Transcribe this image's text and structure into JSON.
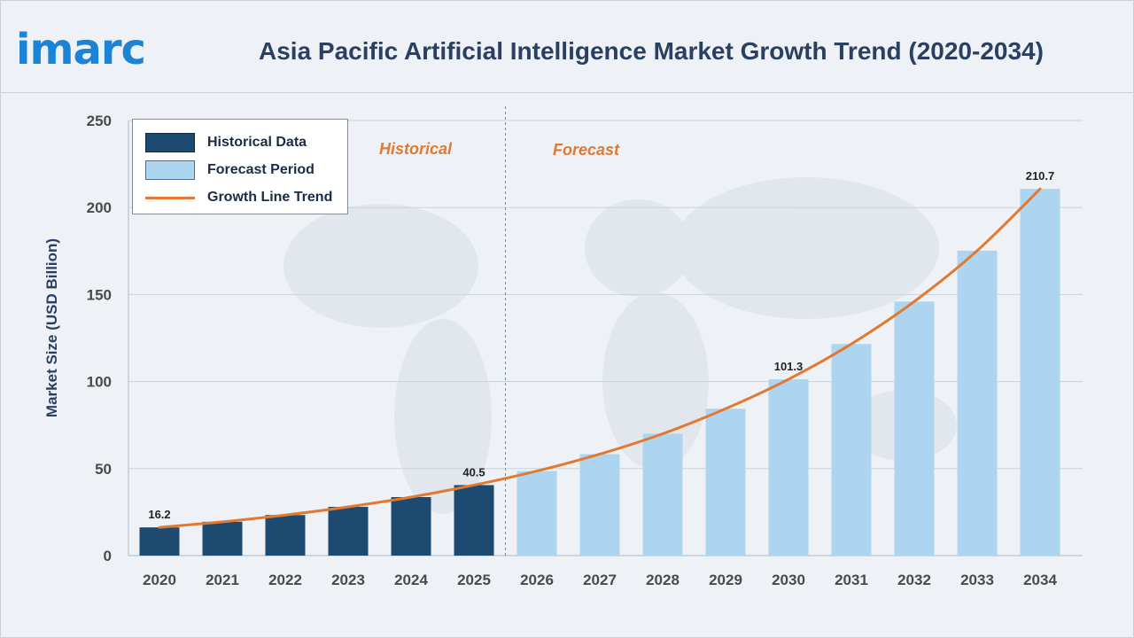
{
  "header": {
    "logo_text": "imarc",
    "title": "Asia Pacific Artificial Intelligence Market Growth Trend (2020-2034)"
  },
  "legend": {
    "historical": "Historical Data",
    "forecast": "Forecast Period",
    "growth": "Growth Line Trend"
  },
  "periods": {
    "historical": "Historical",
    "forecast": "Forecast"
  },
  "colors": {
    "historical_bar": "#1d4a70",
    "forecast_bar": "#aed5ef",
    "growth_line": "#e07a32",
    "title": "#2b3f60",
    "logo": "#1c84d6"
  },
  "chart_data": {
    "type": "bar",
    "title": "Asia Pacific Artificial Intelligence Market Growth Trend (2020-2034)",
    "xlabel": "",
    "ylabel": "Market Size (USD Billion)",
    "ylim": [
      0,
      250
    ],
    "yticks": [
      0,
      50,
      100,
      150,
      200,
      250
    ],
    "grid": true,
    "legend_position": "top-left",
    "categories": [
      "2020",
      "2021",
      "2022",
      "2023",
      "2024",
      "2025",
      "2026",
      "2027",
      "2028",
      "2029",
      "2030",
      "2031",
      "2032",
      "2033",
      "2034"
    ],
    "series": [
      {
        "name": "Historical Data",
        "values": [
          16.2,
          19.4,
          23.3,
          28.0,
          33.6,
          40.5,
          null,
          null,
          null,
          null,
          null,
          null,
          null,
          null,
          null
        ]
      },
      {
        "name": "Forecast Period",
        "values": [
          null,
          null,
          null,
          null,
          null,
          null,
          48.6,
          58.3,
          70.0,
          84.4,
          101.3,
          121.6,
          146.0,
          175.2,
          210.7
        ]
      },
      {
        "name": "Growth Line Trend",
        "values": [
          16.2,
          19.4,
          23.3,
          28.0,
          33.6,
          40.5,
          48.6,
          58.3,
          70.0,
          84.4,
          101.3,
          121.6,
          146.0,
          175.2,
          210.7
        ]
      }
    ],
    "data_labels": [
      {
        "category": "2020",
        "text": "16.2"
      },
      {
        "category": "2025",
        "text": "40.5"
      },
      {
        "category": "2030",
        "text": "101.3"
      },
      {
        "category": "2034",
        "text": "210.7"
      }
    ],
    "annotations": [
      "Historical",
      "Forecast"
    ]
  }
}
